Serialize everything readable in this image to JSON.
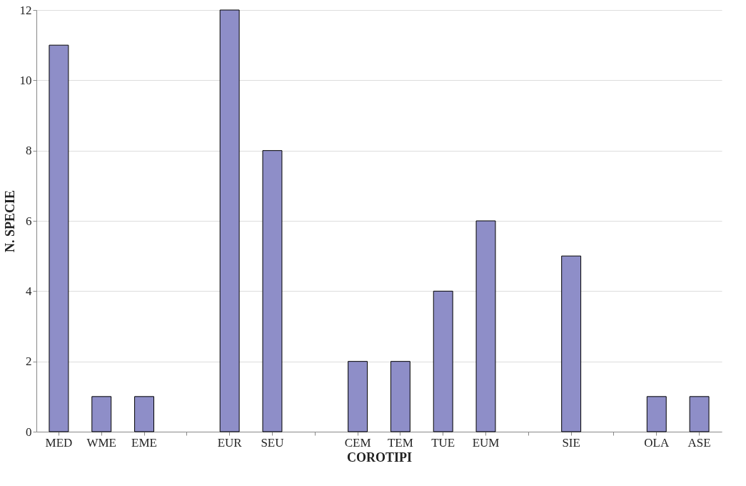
{
  "chart_data": {
    "type": "bar",
    "xlabel": "COROTIPI",
    "ylabel": "N. SPECIE",
    "categories": [
      "MED",
      "WME",
      "EME",
      null,
      "EUR",
      "SEU",
      null,
      "CEM",
      "TEM",
      "TUE",
      "EUM",
      null,
      "SIE",
      null,
      "OLA",
      "ASE"
    ],
    "values": [
      11,
      1,
      1,
      null,
      12,
      8,
      null,
      2,
      2,
      4,
      6,
      null,
      5,
      null,
      1,
      1
    ],
    "color": "#8e8ec8",
    "ylim": [
      0,
      12
    ],
    "yticks": [
      0,
      2,
      4,
      6,
      8,
      10,
      12
    ],
    "grid": "y"
  }
}
